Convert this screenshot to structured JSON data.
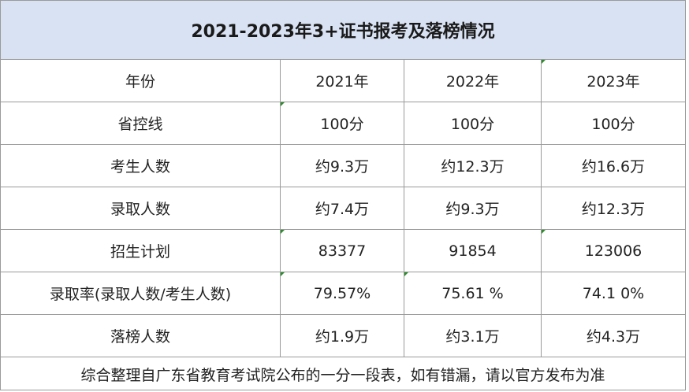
{
  "title": "2021-2023年3+证书报考及落榜情况",
  "rows": [
    [
      "年份",
      "2021年",
      "2022年",
      "2023年"
    ],
    [
      "省控线",
      "100分",
      "100分",
      "100分"
    ],
    [
      "考生人数",
      "约9.3万",
      "约12.3万",
      "约16.6万"
    ],
    [
      "录取人数",
      "约7.4万",
      "约9.3万",
      "约12.3万"
    ],
    [
      "招生计划",
      "83377",
      "91854",
      "123006"
    ],
    [
      "录取率(录取人数/考生人数)",
      "79.57%",
      "75.61 %",
      "74.1 0%"
    ],
    [
      "落榜人数",
      "约1.9万",
      "约3.1万",
      "约4.3万"
    ]
  ],
  "note": "综合整理自广东省教育考试院公布的一分一段表，如有错漏，请以官方发布为准"
}
